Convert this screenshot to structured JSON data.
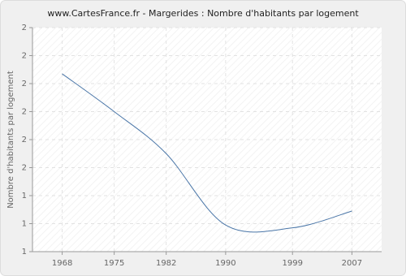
{
  "chart_data": {
    "type": "line",
    "title": "www.CartesFrance.fr - Margerides : Nombre d'habitants par logement",
    "y_label": "Nombre d'habitants par logement",
    "x": [
      1968,
      1975,
      1982,
      1990,
      1999,
      2007
    ],
    "series": [
      {
        "name": "Nombre d'habitants par logement",
        "color": "#4a76a8",
        "values": [
          2.27,
          2.0,
          1.7,
          1.19,
          1.17,
          1.29
        ]
      }
    ],
    "xlim": [
      1964,
      2011
    ],
    "xticks": [
      1968,
      1975,
      1982,
      1990,
      1999,
      2007
    ],
    "ylim": [
      1,
      2.6
    ],
    "yticks": [
      {
        "value": 1,
        "label": "1"
      },
      {
        "value": 1.2,
        "label": "1"
      },
      {
        "value": 1.4,
        "label": "1"
      },
      {
        "value": 1.6,
        "label": "2"
      },
      {
        "value": 1.8,
        "label": "2"
      },
      {
        "value": 2,
        "label": "2"
      },
      {
        "value": 2.2,
        "label": "2"
      },
      {
        "value": 2.4,
        "label": "2"
      },
      {
        "value": 2.6,
        "label": "2"
      }
    ],
    "grid": true
  }
}
